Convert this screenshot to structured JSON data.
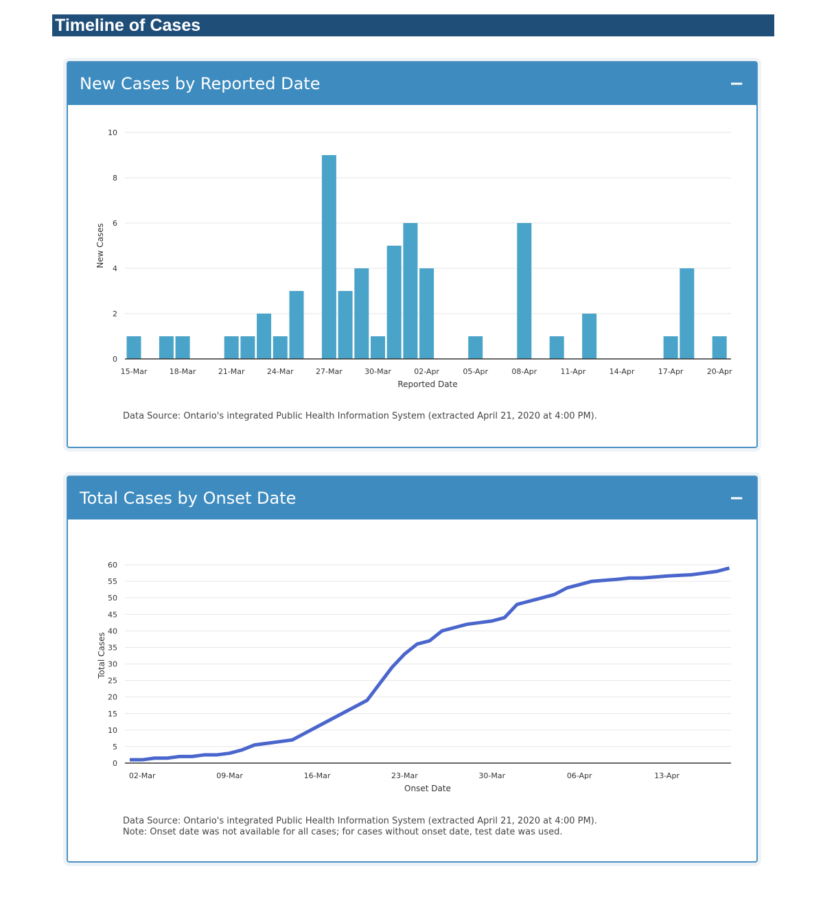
{
  "banner": {
    "title": "Timeline of Cases"
  },
  "panels": [
    {
      "title": "New Cases by Reported Date",
      "collapse": "−",
      "source": "Data Source: Ontario's integrated Public Health Information System (extracted April 21, 2020 at 4:00 PM)."
    },
    {
      "title": "Total Cases by Onset Date",
      "collapse": "−",
      "source": "Data Source: Ontario's integrated Public Health Information System (extracted April 21, 2020 at 4:00 PM).",
      "note": "Note: Onset date was not available for all cases; for cases without onset date, test date was used."
    }
  ],
  "chart_data": [
    {
      "type": "bar",
      "xlabel": "Reported Date",
      "ylabel": "New Cases",
      "ylim": [
        0,
        10
      ],
      "yticks": [
        0,
        2,
        4,
        6,
        8,
        10
      ],
      "grid": true,
      "color": "#4aa3c8",
      "x_start": "2020-03-15",
      "x_end": "2020-04-20",
      "xticks": [
        "15-Mar",
        "18-Mar",
        "21-Mar",
        "24-Mar",
        "27-Mar",
        "30-Mar",
        "02-Apr",
        "05-Apr",
        "08-Apr",
        "11-Apr",
        "14-Apr",
        "17-Apr",
        "20-Apr"
      ],
      "points": [
        [
          "15-Mar",
          1
        ],
        [
          "17-Mar",
          1
        ],
        [
          "18-Mar",
          1
        ],
        [
          "21-Mar",
          1
        ],
        [
          "22-Mar",
          1
        ],
        [
          "23-Mar",
          2
        ],
        [
          "24-Mar",
          1
        ],
        [
          "25-Mar",
          3
        ],
        [
          "27-Mar",
          9
        ],
        [
          "28-Mar",
          3
        ],
        [
          "29-Mar",
          4
        ],
        [
          "30-Mar",
          1
        ],
        [
          "31-Mar",
          5
        ],
        [
          "01-Apr",
          6
        ],
        [
          "02-Apr",
          4
        ],
        [
          "05-Apr",
          1
        ],
        [
          "08-Apr",
          6
        ],
        [
          "10-Apr",
          1
        ],
        [
          "12-Apr",
          2
        ],
        [
          "17-Apr",
          1
        ],
        [
          "18-Apr",
          4
        ],
        [
          "20-Apr",
          1
        ]
      ]
    },
    {
      "type": "line",
      "xlabel": "Onset Date",
      "ylabel": "Total Cases",
      "ylim": [
        0,
        60
      ],
      "yticks": [
        0,
        5,
        10,
        15,
        20,
        25,
        30,
        35,
        40,
        45,
        50,
        55,
        60
      ],
      "grid": true,
      "color": "#4a66cc",
      "x_start": "2020-03-01",
      "xticks": [
        "02-Mar",
        "09-Mar",
        "16-Mar",
        "23-Mar",
        "30-Mar",
        "06-Apr",
        "13-Apr"
      ],
      "values": [
        1,
        1,
        1.5,
        1.5,
        2,
        2,
        2.5,
        2.5,
        3,
        4,
        5.5,
        6,
        6.5,
        7,
        9,
        11,
        13,
        15,
        17,
        19,
        24,
        29,
        33,
        36,
        37,
        40,
        41,
        42,
        42.5,
        43,
        44,
        48,
        49,
        50,
        51,
        53,
        54,
        55,
        55.3,
        55.6,
        56,
        56,
        56.3,
        56.6,
        56.8,
        57,
        57.5,
        58,
        59
      ]
    }
  ]
}
